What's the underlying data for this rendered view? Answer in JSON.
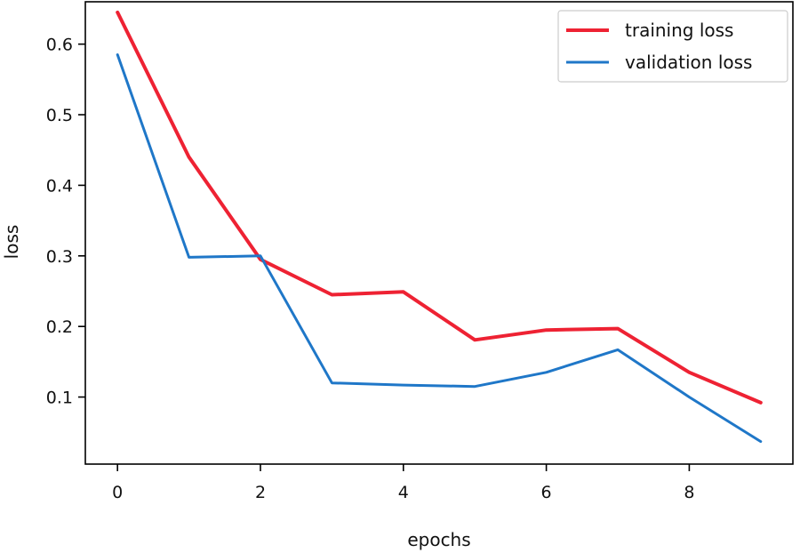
{
  "chart_data": {
    "type": "line",
    "title": "",
    "xlabel": "epochs",
    "ylabel": "loss",
    "x": [
      0,
      1,
      2,
      3,
      4,
      5,
      6,
      7,
      8,
      9
    ],
    "xlim": [
      -0.45,
      9.45
    ],
    "ylim": [
      0.005,
      0.66
    ],
    "xticks": [
      0,
      2,
      4,
      6,
      8
    ],
    "yticks": [
      0.1,
      0.2,
      0.3,
      0.4,
      0.5,
      0.6
    ],
    "xtick_labels": [
      "0",
      "2",
      "4",
      "6",
      "8"
    ],
    "ytick_labels": [
      "0.1",
      "0.2",
      "0.3",
      "0.4",
      "0.5",
      "0.6"
    ],
    "grid": false,
    "legend_position": "top-right",
    "series": [
      {
        "name": "training loss",
        "color": "#ee2233",
        "values": [
          0.645,
          0.44,
          0.295,
          0.245,
          0.249,
          0.181,
          0.195,
          0.197,
          0.135,
          0.092
        ]
      },
      {
        "name": "validation loss",
        "color": "#1f77c8",
        "values": [
          0.585,
          0.298,
          0.3,
          0.12,
          0.117,
          0.115,
          0.135,
          0.167,
          0.1,
          0.037
        ]
      }
    ]
  }
}
